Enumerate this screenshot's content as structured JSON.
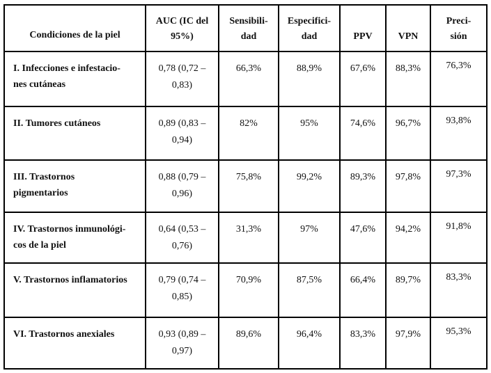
{
  "table": {
    "title_semantic": "Diagnostic performance metrics by skin condition group",
    "colors": {
      "border": "#000000",
      "text": "#111111",
      "background": "#ffffff"
    },
    "headers": [
      {
        "id": "condition",
        "label": "Condiciones de la piel",
        "lines": [
          "Condiciones de la piel"
        ]
      },
      {
        "id": "auc",
        "label": "AUC (IC del 95%)",
        "lines": [
          "AUC (IC del",
          "95%)"
        ]
      },
      {
        "id": "sensitivity",
        "label": "Sensibilidad",
        "lines": [
          "Sensibili-",
          "dad"
        ]
      },
      {
        "id": "specificity",
        "label": "Especificidad",
        "lines": [
          "Especifici-",
          "dad"
        ]
      },
      {
        "id": "ppv",
        "label": "PPV",
        "lines": [
          "PPV"
        ]
      },
      {
        "id": "vpn",
        "label": "VPN",
        "lines": [
          "VPN"
        ]
      },
      {
        "id": "precision",
        "label": "Precisión",
        "lines": [
          "Preci-",
          "sión"
        ]
      }
    ],
    "rows": [
      {
        "condition": "I. Infecciones e infestaciones cutáneas",
        "condition_lines": [
          "I. Infecciones e infestacio-",
          "nes cutáneas"
        ],
        "auc": "0,78 (0,72 – 0,83)",
        "auc_lines": [
          "0,78 (0,72 –",
          "0,83)"
        ],
        "sensitivity": "66,3%",
        "specificity": "88,9%",
        "ppv": "67,6%",
        "vpn": "88,3%",
        "precision": "76,3%"
      },
      {
        "condition": "II. Tumores cutáneos",
        "condition_lines": [
          "II. Tumores cutáneos"
        ],
        "auc": "0,89 (0,83 – 0,94)",
        "auc_lines": [
          "0,89 (0,83 –",
          "0,94)"
        ],
        "sensitivity": "82%",
        "specificity": "95%",
        "ppv": "74,6%",
        "vpn": "96,7%",
        "precision": "93,8%"
      },
      {
        "condition": "III. Trastornos pigmentarios",
        "condition_lines": [
          "III. Trastornos",
          "pigmentarios"
        ],
        "auc": "0,88 (0,79 – 0,96)",
        "auc_lines": [
          "0,88 (0,79 –",
          "0,96)"
        ],
        "sensitivity": "75,8%",
        "specificity": "99,2%",
        "ppv": "89,3%",
        "vpn": "97,8%",
        "precision": "97,3%"
      },
      {
        "condition": "IV. Trastornos inmunológicos de la piel",
        "condition_lines": [
          "IV. Trastornos inmunológi-",
          "cos de la piel"
        ],
        "auc": "0,64 (0,53 – 0,76)",
        "auc_lines": [
          "0,64 (0,53 –",
          "0,76)"
        ],
        "sensitivity": "31,3%",
        "specificity": "97%",
        "ppv": "47,6%",
        "vpn": "94,2%",
        "precision": "91,8%"
      },
      {
        "condition": "V. Trastornos inflamatorios",
        "condition_lines": [
          "V. Trastornos inflamatorios"
        ],
        "auc": "0,79 (0,74 – 0,85)",
        "auc_lines": [
          "0,79 (0,74 –",
          "0,85)"
        ],
        "sensitivity": "70,9%",
        "specificity": "87,5%",
        "ppv": "66,4%",
        "vpn": "89,7%",
        "precision": "83,3%"
      },
      {
        "condition": "VI. Trastornos anexiales",
        "condition_lines": [
          "VI. Trastornos anexiales"
        ],
        "auc": "0,93 (0,89 – 0,97)",
        "auc_lines": [
          "0,93 (0,89 –",
          "0,97)"
        ],
        "sensitivity": "89,6%",
        "specificity": "96,4%",
        "ppv": "83,3%",
        "vpn": "97,9%",
        "precision": "95,3%"
      }
    ]
  }
}
